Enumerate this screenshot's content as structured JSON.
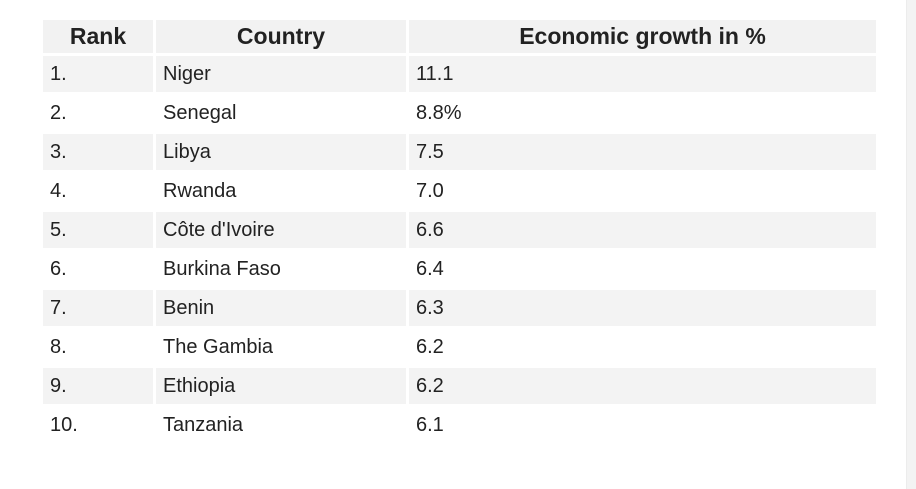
{
  "table": {
    "headers": [
      "Rank",
      "Country",
      "Economic growth in %"
    ],
    "rows": [
      [
        "1.",
        "Niger",
        "11.1"
      ],
      [
        "2.",
        "Senegal",
        "8.8%"
      ],
      [
        "3.",
        "Libya",
        "7.5"
      ],
      [
        "4.",
        "Rwanda",
        "7.0"
      ],
      [
        "5.",
        "Côte d'Ivoire",
        "6.6"
      ],
      [
        "6.",
        "Burkina Faso",
        "6.4"
      ],
      [
        "7.",
        "Benin",
        "6.3"
      ],
      [
        "8.",
        "The Gambia",
        "6.2"
      ],
      [
        "9.",
        "Ethiopia",
        "6.2"
      ],
      [
        "10.",
        "Tanzania",
        "6.1"
      ]
    ]
  }
}
